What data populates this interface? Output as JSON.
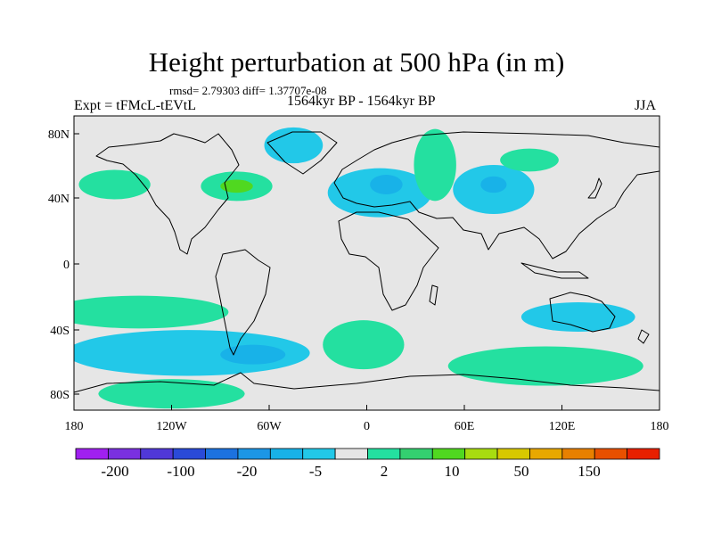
{
  "title": "Height perturbation at 500 hPa (in m)",
  "stats": "rmsd= 2.79303 diff= 1.37707e-08",
  "left_label": "Expt = tFMcL-tEVtL",
  "center_label": "1564kyr BP - 1564kyr BP",
  "right_label": "JJA",
  "x_ticks": [
    "180",
    "120W",
    "60W",
    "0",
    "60E",
    "120E",
    "180"
  ],
  "y_ticks": [
    "80N",
    "40N",
    "0",
    "40S",
    "80S"
  ],
  "colorbar": {
    "colors": [
      "#a020f0",
      "#7a30e0",
      "#5038d8",
      "#2a4ad8",
      "#1c72e0",
      "#1c96e6",
      "#18b2e8",
      "#22c8e8",
      "#e6e6e6",
      "#24e0a0",
      "#34d070",
      "#50d820",
      "#a8dc10",
      "#d8c800",
      "#e8a800",
      "#e88000",
      "#e85000",
      "#e82000"
    ],
    "labels": [
      "-200",
      "-100",
      "-20",
      "-5",
      "2",
      "10",
      "50",
      "150"
    ]
  },
  "chart_data": {
    "type": "filled-contour-map",
    "title": "Height perturbation at 500 hPa (in m)",
    "variable": "500 hPa geopotential height perturbation",
    "units": "m",
    "season": "JJA",
    "experiment": "tFMcL-tEVtL",
    "period": "1564kyr BP - 1564kyr BP",
    "rmsd": 2.79303,
    "diff": 1.37707e-08,
    "lon_range": [
      -180,
      180
    ],
    "lat_range": [
      -90,
      90
    ],
    "contour_levels": [
      -200,
      -100,
      -20,
      -5,
      2,
      10,
      50,
      150
    ],
    "anomalies": [
      {
        "name": "north-pacific-positive",
        "lon": -155,
        "lat": 48,
        "rlon": 22,
        "rlat": 9,
        "level": 5
      },
      {
        "name": "north-america-positive",
        "lon": -80,
        "lat": 47,
        "rlon": 22,
        "rlat": 9,
        "level": 5
      },
      {
        "name": "north-america-core",
        "lon": -80,
        "lat": 47,
        "rlon": 10,
        "rlat": 4,
        "level": 10
      },
      {
        "name": "greenland-negative",
        "lon": -45,
        "lat": 72,
        "rlon": 18,
        "rlat": 11,
        "level": -5
      },
      {
        "name": "europe-negative",
        "lon": 8,
        "lat": 43,
        "rlon": 32,
        "rlat": 15,
        "level": -5
      },
      {
        "name": "europe-core",
        "lon": 12,
        "lat": 48,
        "rlon": 10,
        "rlat": 6,
        "level": -20
      },
      {
        "name": "west-russia-positive",
        "lon": 42,
        "lat": 60,
        "rlon": 13,
        "rlat": 22,
        "level": 5
      },
      {
        "name": "central-asia-negative",
        "lon": 78,
        "lat": 45,
        "rlon": 25,
        "rlat": 15,
        "level": -5
      },
      {
        "name": "central-asia-core",
        "lon": 78,
        "lat": 48,
        "rlon": 8,
        "rlat": 5,
        "level": -20
      },
      {
        "name": "siberia-positive",
        "lon": 100,
        "lat": 63,
        "rlon": 18,
        "rlat": 7,
        "level": 5
      },
      {
        "name": "south-pacific-positive",
        "lon": -140,
        "lat": -30,
        "rlon": 55,
        "rlat": 10,
        "level": 5
      },
      {
        "name": "south-pacific-negative",
        "lon": -110,
        "lat": -55,
        "rlon": 75,
        "rlat": 14,
        "level": -5
      },
      {
        "name": "south-pacific-core",
        "lon": -70,
        "lat": -56,
        "rlon": 20,
        "rlat": 6,
        "level": -20
      },
      {
        "name": "south-atlantic-positive",
        "lon": -2,
        "lat": -50,
        "rlon": 25,
        "rlat": 15,
        "level": 5
      },
      {
        "name": "southern-ocean-positive",
        "lon": 110,
        "lat": -63,
        "rlon": 60,
        "rlat": 12,
        "level": 5
      },
      {
        "name": "australia-negative",
        "lon": 130,
        "lat": -33,
        "rlon": 35,
        "rlat": 9,
        "level": -5
      },
      {
        "name": "antarctic-positive",
        "lon": -120,
        "lat": -80,
        "rlon": 45,
        "rlat": 9,
        "level": 5
      }
    ]
  }
}
